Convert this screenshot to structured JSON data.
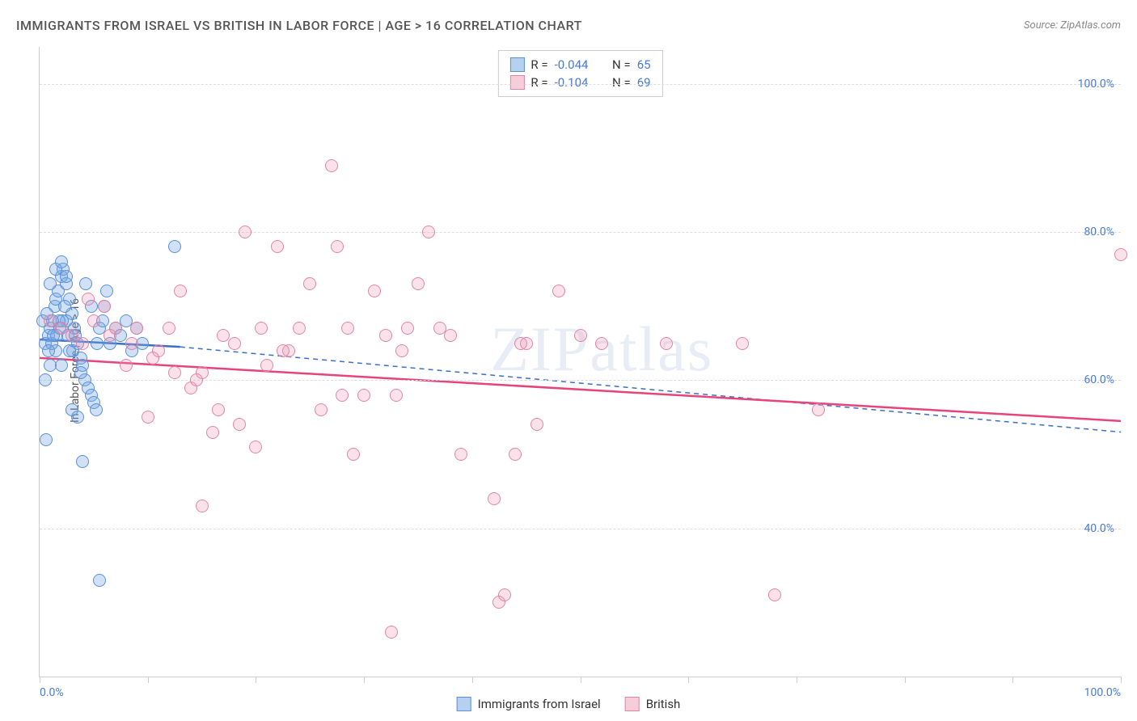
{
  "title": "IMMIGRANTS FROM ISRAEL VS BRITISH IN LABOR FORCE | AGE > 16 CORRELATION CHART",
  "source": "Source: ZipAtlas.com",
  "watermark": "ZIPatlas",
  "yaxis_label": "In Labor Force | Age > 16",
  "xlim": [
    0,
    100
  ],
  "ylim": [
    20,
    105
  ],
  "yticks": [
    {
      "value": 40,
      "label": "40.0%"
    },
    {
      "value": 60,
      "label": "60.0%"
    },
    {
      "value": 80,
      "label": "80.0%"
    },
    {
      "value": 100,
      "label": "100.0%"
    }
  ],
  "xticks": [
    0,
    10,
    20,
    30,
    40,
    50,
    60,
    70,
    80,
    90,
    100
  ],
  "xtick_labels": {
    "0": "0.0%",
    "100": "100.0%"
  },
  "series": [
    {
      "name": "Immigrants from Israel",
      "legend_label": "Immigrants from Israel",
      "R": "-0.044",
      "N": "65",
      "fill": "rgba(120, 170, 230, 0.35)",
      "stroke": "#5b8fd6",
      "swatch_fill": "#b6d1f0",
      "swatch_border": "#5b8fd6",
      "trend_color": "#3b6fc4",
      "trend_dash": "none",
      "trend_ext_dash": "6,5",
      "trend_seg": {
        "x1": 0,
        "y1": 65.5,
        "x2": 13,
        "y2": 64.5
      },
      "trend_ext": {
        "x1": 13,
        "y1": 64.5,
        "x2": 100,
        "y2": 53.0
      },
      "marker_size": 16,
      "points": [
        [
          0.5,
          65
        ],
        [
          0.8,
          66
        ],
        [
          1.0,
          67
        ],
        [
          1.2,
          68
        ],
        [
          1.4,
          70
        ],
        [
          1.5,
          71
        ],
        [
          1.7,
          72
        ],
        [
          2.0,
          74
        ],
        [
          2.2,
          75
        ],
        [
          2.5,
          73
        ],
        [
          2.8,
          71
        ],
        [
          3.0,
          69
        ],
        [
          3.2,
          67
        ],
        [
          3.5,
          65
        ],
        [
          3.8,
          63
        ],
        [
          4.0,
          62
        ],
        [
          4.2,
          60
        ],
        [
          4.5,
          59
        ],
        [
          4.8,
          58
        ],
        [
          5.0,
          57
        ],
        [
          5.2,
          56
        ],
        [
          5.5,
          67
        ],
        [
          5.8,
          68
        ],
        [
          6.0,
          70
        ],
        [
          6.2,
          72
        ],
        [
          0.5,
          60
        ],
        [
          1.0,
          62
        ],
        [
          1.5,
          64
        ],
        [
          2.0,
          62
        ],
        [
          2.5,
          68
        ],
        [
          3.0,
          56
        ],
        [
          3.5,
          55
        ],
        [
          0.6,
          52
        ],
        [
          1.1,
          65
        ],
        [
          1.6,
          66
        ],
        [
          2.1,
          68
        ],
        [
          2.6,
          66
        ],
        [
          3.1,
          64
        ],
        [
          0.8,
          64
        ],
        [
          1.3,
          66
        ],
        [
          1.8,
          68
        ],
        [
          2.3,
          70
        ],
        [
          2.8,
          64
        ],
        [
          3.3,
          66
        ],
        [
          3.8,
          61
        ],
        [
          4.3,
          73
        ],
        [
          4.8,
          70
        ],
        [
          5.3,
          65
        ],
        [
          12.5,
          78
        ],
        [
          5.5,
          33
        ],
        [
          4.0,
          49
        ],
        [
          6.5,
          65
        ],
        [
          7.0,
          67
        ],
        [
          7.5,
          66
        ],
        [
          8.0,
          68
        ],
        [
          8.5,
          64
        ],
        [
          9.0,
          67
        ],
        [
          9.5,
          65
        ],
        [
          1.0,
          73
        ],
        [
          1.5,
          75
        ],
        [
          2.0,
          76
        ],
        [
          2.5,
          74
        ],
        [
          0.3,
          68
        ],
        [
          0.7,
          69
        ],
        [
          1.9,
          67
        ]
      ]
    },
    {
      "name": "British",
      "legend_label": "British",
      "R": "-0.104",
      "N": "69",
      "fill": "rgba(240, 150, 180, 0.28)",
      "stroke": "#e185a8",
      "swatch_fill": "#f6cdd9",
      "swatch_border": "#e185a8",
      "trend_color": "#e6447a",
      "trend_dash": "none",
      "trend_ext_dash": "none",
      "trend_seg": {
        "x1": 0,
        "y1": 63.0,
        "x2": 100,
        "y2": 54.5
      },
      "trend_ext": null,
      "marker_size": 16,
      "points": [
        [
          1.0,
          68
        ],
        [
          2.0,
          67
        ],
        [
          3.0,
          66
        ],
        [
          4.0,
          65
        ],
        [
          5.0,
          68
        ],
        [
          6.0,
          70
        ],
        [
          7.0,
          67
        ],
        [
          8.0,
          62
        ],
        [
          9.0,
          67
        ],
        [
          10.0,
          55
        ],
        [
          11.0,
          64
        ],
        [
          12.0,
          67
        ],
        [
          13.0,
          72
        ],
        [
          14.0,
          59
        ],
        [
          15.0,
          61
        ],
        [
          16.0,
          53
        ],
        [
          17.0,
          66
        ],
        [
          18.0,
          65
        ],
        [
          19.0,
          80
        ],
        [
          20.0,
          51
        ],
        [
          15.0,
          43
        ],
        [
          21.0,
          62
        ],
        [
          22.0,
          78
        ],
        [
          23.0,
          64
        ],
        [
          24.0,
          67
        ],
        [
          25.0,
          73
        ],
        [
          26.0,
          56
        ],
        [
          27.0,
          89
        ],
        [
          27.5,
          78
        ],
        [
          28.0,
          58
        ],
        [
          28.5,
          67
        ],
        [
          29.0,
          50
        ],
        [
          30.0,
          58
        ],
        [
          31.0,
          72
        ],
        [
          32.0,
          66
        ],
        [
          32.5,
          26
        ],
        [
          33.0,
          58
        ],
        [
          33.5,
          64
        ],
        [
          34.0,
          67
        ],
        [
          35.0,
          73
        ],
        [
          36.0,
          80
        ],
        [
          37.0,
          67
        ],
        [
          38.0,
          66
        ],
        [
          39.0,
          50
        ],
        [
          42.0,
          44
        ],
        [
          42.5,
          30
        ],
        [
          43.0,
          31
        ],
        [
          44.0,
          50
        ],
        [
          44.5,
          65
        ],
        [
          45.0,
          65
        ],
        [
          46.0,
          54
        ],
        [
          48.0,
          72
        ],
        [
          50.0,
          66
        ],
        [
          52.0,
          65
        ],
        [
          58.0,
          65
        ],
        [
          65.0,
          65
        ],
        [
          68.0,
          31
        ],
        [
          72.0,
          56
        ],
        [
          100.0,
          77
        ],
        [
          4.5,
          71
        ],
        [
          6.5,
          66
        ],
        [
          8.5,
          65
        ],
        [
          10.5,
          63
        ],
        [
          12.5,
          61
        ],
        [
          14.5,
          60
        ],
        [
          16.5,
          56
        ],
        [
          18.5,
          54
        ],
        [
          20.5,
          67
        ],
        [
          22.5,
          64
        ]
      ]
    }
  ],
  "legend_format": {
    "R_label": "R = ",
    "N_label": "N = "
  }
}
